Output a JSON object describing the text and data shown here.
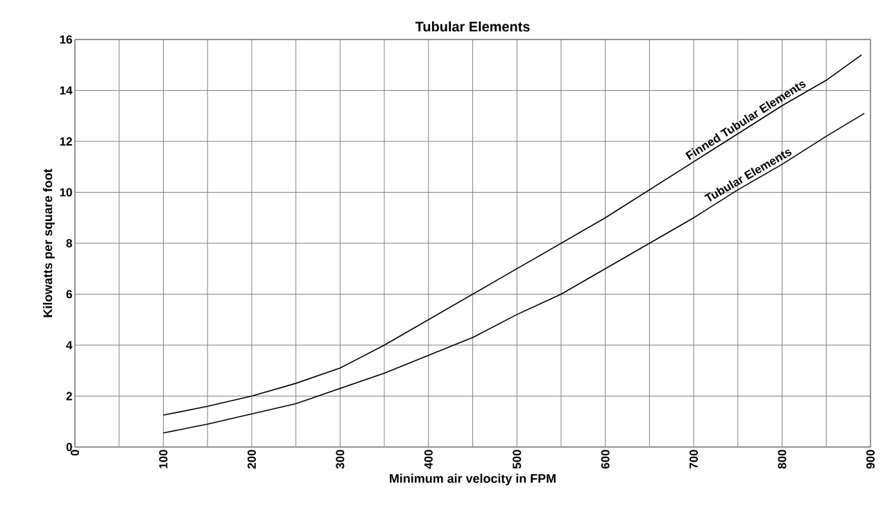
{
  "chart_data": {
    "type": "line",
    "title": "Tubular Elements",
    "xlabel": "Minimum air velocity in FPM",
    "ylabel": "Kilowatts per square foot",
    "xlim": [
      0,
      900
    ],
    "ylim": [
      0,
      16
    ],
    "xticks": [
      0,
      {
        "value": 50,
        "label": null
      },
      100,
      {
        "value": 150,
        "label": null
      },
      200,
      {
        "value": 250,
        "label": null
      },
      300,
      {
        "value": 350,
        "label": null
      },
      400,
      {
        "value": 450,
        "label": null
      },
      500,
      {
        "value": 550,
        "label": null
      },
      600,
      {
        "value": 650,
        "label": null
      },
      700,
      {
        "value": 750,
        "label": null
      },
      800,
      {
        "value": 850,
        "label": null
      },
      900
    ],
    "yticks": [
      0,
      2,
      4,
      6,
      8,
      10,
      12,
      14,
      16
    ],
    "grid": true,
    "series": [
      {
        "name": "Finned Tubular Elements",
        "color": "#000000",
        "x": [
          100,
          150,
          200,
          250,
          300,
          350,
          400,
          450,
          500,
          550,
          600,
          650,
          700,
          750,
          800,
          850,
          890
        ],
        "values": [
          1.25,
          1.6,
          2.0,
          2.5,
          3.1,
          4.0,
          5.0,
          6.0,
          7.0,
          8.0,
          9.0,
          10.1,
          11.2,
          12.3,
          13.4,
          14.4,
          15.4
        ]
      },
      {
        "name": "Tubular Elements",
        "color": "#000000",
        "x": [
          100,
          150,
          200,
          250,
          300,
          350,
          400,
          450,
          500,
          550,
          600,
          650,
          700,
          750,
          800,
          850,
          893
        ],
        "values": [
          0.55,
          0.9,
          1.3,
          1.7,
          2.3,
          2.9,
          3.6,
          4.3,
          5.2,
          6.0,
          7.0,
          8.0,
          9.0,
          10.1,
          11.1,
          12.2,
          13.1
        ]
      }
    ]
  }
}
